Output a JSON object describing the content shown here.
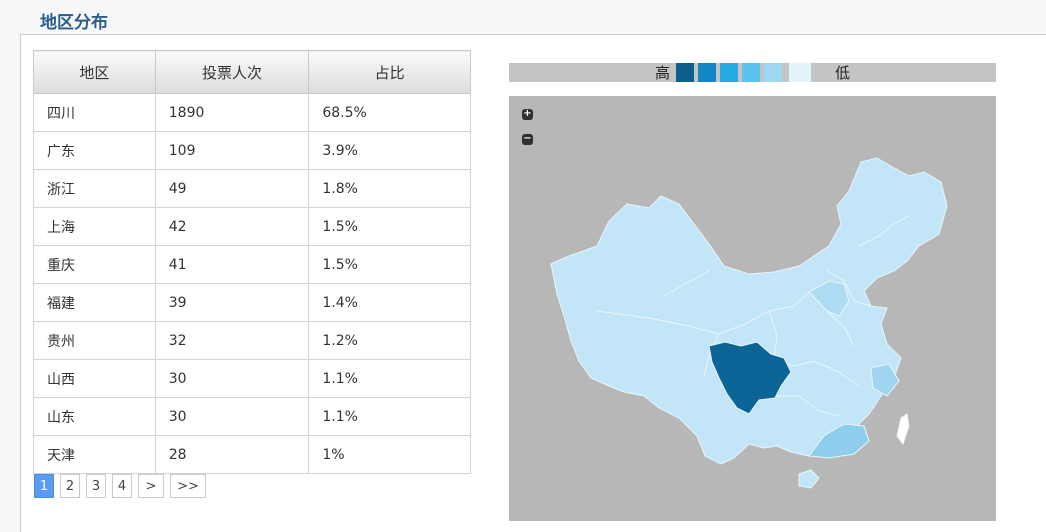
{
  "section": {
    "title": "地区分布"
  },
  "table": {
    "headers": [
      "地区",
      "投票人次",
      "占比"
    ],
    "rows": [
      [
        "四川",
        "1890",
        "68.5%"
      ],
      [
        "广东",
        "109",
        "3.9%"
      ],
      [
        "浙江",
        "49",
        "1.8%"
      ],
      [
        "上海",
        "42",
        "1.5%"
      ],
      [
        "重庆",
        "41",
        "1.5%"
      ],
      [
        "福建",
        "39",
        "1.4%"
      ],
      [
        "贵州",
        "32",
        "1.2%"
      ],
      [
        "山西",
        "30",
        "1.1%"
      ],
      [
        "山东",
        "30",
        "1.1%"
      ],
      [
        "天津",
        "28",
        "1%"
      ]
    ]
  },
  "pagination": {
    "pages": [
      "1",
      "2",
      "3",
      "4"
    ],
    "current": "1",
    "next": ">",
    "last": ">>"
  },
  "legend": {
    "high": "高",
    "low": "低",
    "colors": [
      "#0c5f8a",
      "#1387c4",
      "#26aae2",
      "#5cc2ef",
      "#9dd8f4",
      "#e3f3fb"
    ]
  },
  "map": {
    "zoom_in": "+",
    "zoom_out": "−",
    "colors": {
      "background": "#b7b7b7",
      "base": "#c2e6f7",
      "highlight": "#0b6596",
      "mid": "#8ecdeb",
      "light": "#aedcf2"
    }
  }
}
